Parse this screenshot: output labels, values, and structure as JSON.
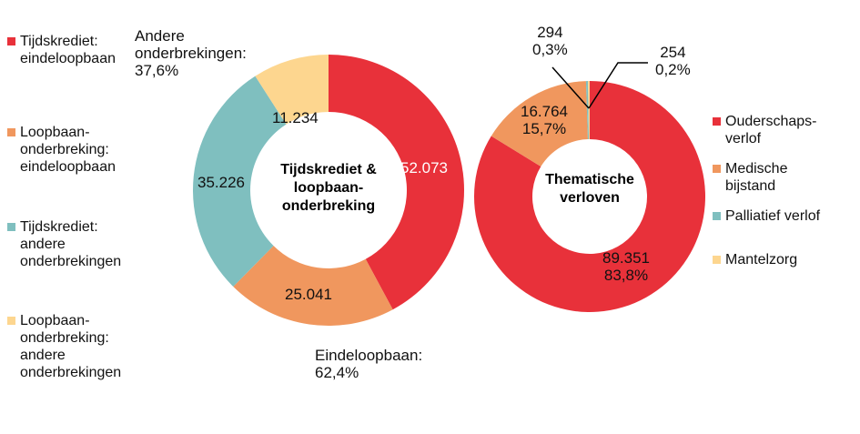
{
  "chart_data": [
    {
      "type": "pie",
      "title": "Tijdskrediet & loopbaan-onderbreking",
      "categories": [
        "Tijdskrediet: eindeloopbaan",
        "Loopbaan-onderbreking: eindeloopbaan",
        "Tijdskrediet: andere onderbrekingen",
        "Loopbaan-onderbreking: andere onderbrekingen"
      ],
      "values": [
        52073,
        25041,
        35226,
        11234
      ],
      "labels": [
        "52.073",
        "25.041",
        "35.226",
        "11.234"
      ],
      "colors": [
        "#E8313A",
        "#F0975E",
        "#7FBFBF",
        "#FDD68F"
      ],
      "group_annotations": {
        "andere": "Andere\nonderbrekingen:\n37,6%",
        "eindeloopbaan": "Eindeloopbaan:\n62,4%"
      }
    },
    {
      "type": "pie",
      "title": "Thematische verloven",
      "categories": [
        "Ouderschaps-verlof",
        "Medische bijstand",
        "Palliatief verlof",
        "Mantelzorg"
      ],
      "values": [
        89351,
        16764,
        294,
        254
      ],
      "labels": [
        "89.351\n83,8%",
        "16.764\n15,7%",
        "294\n0,3%",
        "254\n0,2%"
      ],
      "colors": [
        "#E8313A",
        "#F0975E",
        "#7FBFBF",
        "#FDD68F"
      ]
    }
  ],
  "legend1": [
    "Tijdskrediet:\neindeloopbaan",
    "Loopbaan-\nonderbreking:\neindeloopbaan",
    "Tijdskrediet:\nandere\nonderbrekingen",
    "Loopbaan-\nonderbreking:\nandere\nonderbrekingen"
  ],
  "legend2": [
    "Ouderschaps-\nverlof",
    "Medische\nbijstand",
    "Palliatief verlof",
    "Mantelzorg"
  ],
  "center1": "Tijdskrediet &\nloopbaan-\nonderbreking",
  "center2": "Thematische\nverloven"
}
